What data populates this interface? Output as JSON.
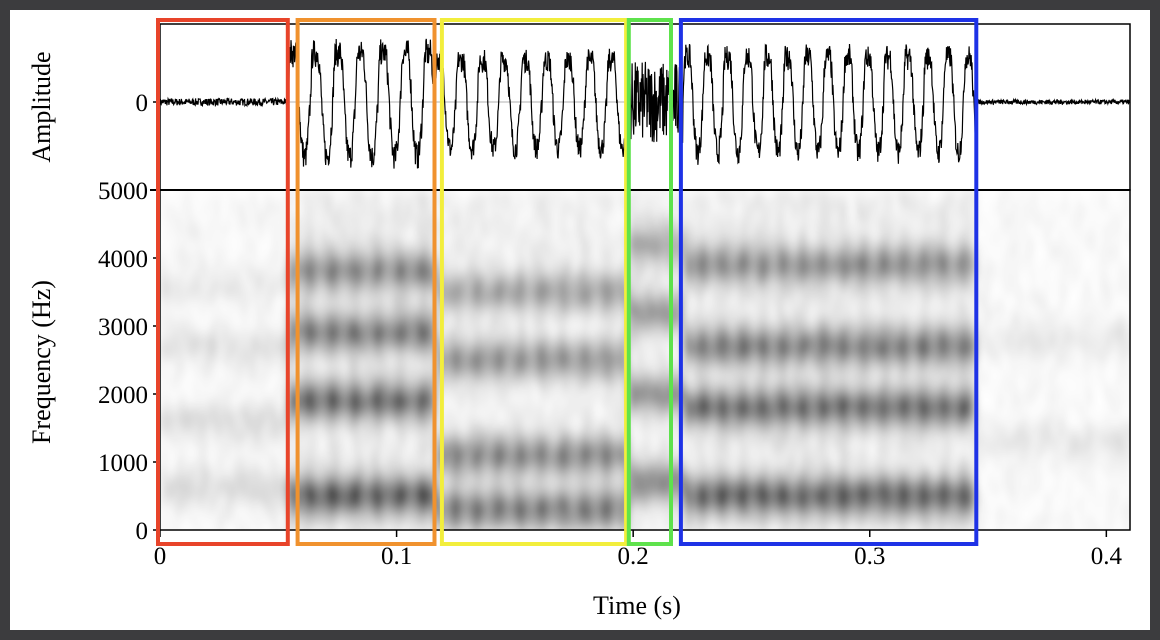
{
  "chart_data": {
    "type": "spectrogram",
    "waveform": {
      "ylabel": "Amplitude",
      "yticks": [
        {
          "value": 0,
          "label": "0"
        }
      ]
    },
    "spectrogram": {
      "ylabel": "Frequency (Hz)",
      "ylim": [
        0,
        5000
      ],
      "yticks": [
        {
          "value": 0,
          "label": "0"
        },
        {
          "value": 1000,
          "label": "1000"
        },
        {
          "value": 2000,
          "label": "2000"
        },
        {
          "value": 3000,
          "label": "3000"
        },
        {
          "value": 4000,
          "label": "4000"
        },
        {
          "value": 5000,
          "label": "5000"
        }
      ]
    },
    "xlabel": "Time (s)",
    "xlim": [
      0,
      0.41
    ],
    "xticks": [
      {
        "value": 0,
        "label": "0"
      },
      {
        "value": 0.1,
        "label": "0.1"
      },
      {
        "value": 0.2,
        "label": "0.2"
      },
      {
        "value": 0.3,
        "label": "0.3"
      },
      {
        "value": 0.4,
        "label": "0.4"
      }
    ],
    "segments": [
      {
        "start": 0.0,
        "end": 0.054,
        "color": "#e8442a"
      },
      {
        "start": 0.059,
        "end": 0.116,
        "color": "#f0922e"
      },
      {
        "start": 0.12,
        "end": 0.197,
        "color": "#f2ee3c"
      },
      {
        "start": 0.199,
        "end": 0.216,
        "color": "#5ee24c"
      },
      {
        "start": 0.221,
        "end": 0.345,
        "color": "#1e32e6"
      }
    ],
    "voicing": [
      {
        "start": 0.0,
        "end": 0.054,
        "amp": 0.08,
        "f0": 0,
        "formants": [
          600,
          1600,
          2700,
          3600
        ],
        "energy": 0.18
      },
      {
        "start": 0.054,
        "end": 0.116,
        "amp": 1.0,
        "f0": 105,
        "formants": [
          500,
          1900,
          2900,
          3800
        ],
        "energy": 0.9
      },
      {
        "start": 0.116,
        "end": 0.197,
        "amp": 0.85,
        "f0": 110,
        "formants": [
          300,
          1100,
          2500,
          3500
        ],
        "energy": 0.72
      },
      {
        "start": 0.197,
        "end": 0.221,
        "amp": 0.6,
        "f0": 0,
        "formants": [
          700,
          2000,
          3200,
          4200
        ],
        "energy": 0.6
      },
      {
        "start": 0.221,
        "end": 0.345,
        "amp": 0.92,
        "f0": 118,
        "formants": [
          500,
          1800,
          2700,
          3900
        ],
        "energy": 0.88
      },
      {
        "start": 0.345,
        "end": 0.41,
        "amp": 0.05,
        "f0": 0,
        "formants": [
          1300,
          2800
        ],
        "energy": 0.12
      }
    ]
  }
}
